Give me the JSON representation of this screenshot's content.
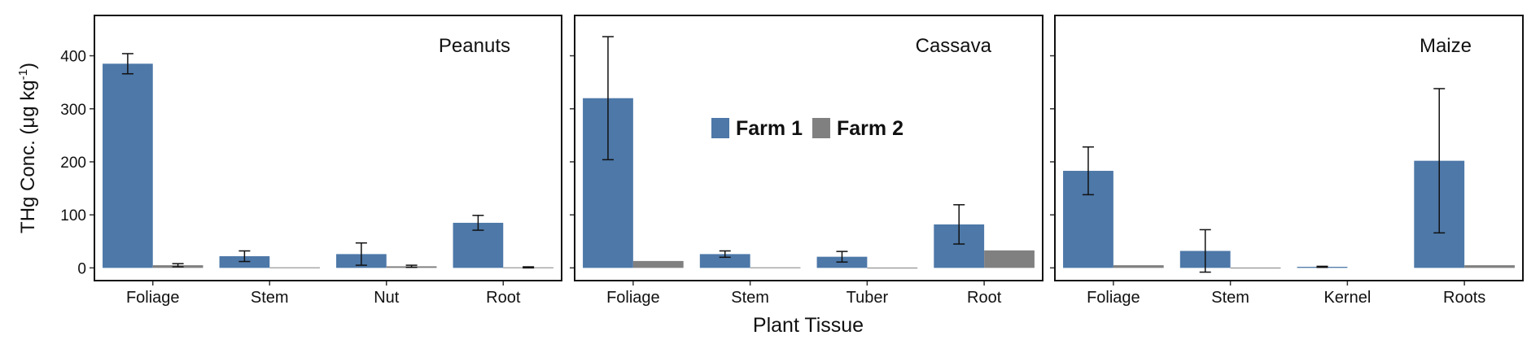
{
  "chart_data": {
    "type": "bar",
    "ylabel": [
      "THg Conc. (μg kg",
      "-1",
      ")"
    ],
    "xlabel": "Plant Tissue",
    "ylim": [
      -24,
      476
    ],
    "yticks": [
      0,
      100,
      200,
      300,
      400
    ],
    "legend": "center",
    "series": [
      {
        "name": "Farm 1",
        "color": "#4d78a8"
      },
      {
        "name": "Farm 2",
        "color": "#808080"
      }
    ],
    "panels": [
      {
        "title": "Peanuts",
        "categories": [
          "Foliage",
          "Stem",
          "Nut",
          "Root"
        ],
        "values": [
          [
            385,
            22,
            26,
            85
          ],
          [
            5,
            1,
            3,
            1
          ]
        ],
        "errors": [
          [
            19,
            10,
            21,
            14
          ],
          [
            3,
            null,
            2,
            1
          ]
        ]
      },
      {
        "title": "Cassava",
        "categories": [
          "Foliage",
          "Stem",
          "Tuber",
          "Root"
        ],
        "values": [
          [
            320,
            26,
            21,
            82
          ],
          [
            13,
            1,
            0.5,
            33
          ]
        ],
        "errors": [
          [
            116,
            6,
            10,
            37
          ],
          [
            null,
            null,
            null,
            null
          ]
        ]
      },
      {
        "title": "Maize",
        "categories": [
          "Foliage",
          "Stem",
          "Kernel",
          "Roots"
        ],
        "values": [
          [
            183,
            32,
            2,
            202
          ],
          [
            5,
            0.5,
            null,
            5
          ]
        ],
        "errors": [
          [
            45,
            40,
            1,
            136
          ],
          [
            null,
            null,
            null,
            null
          ]
        ]
      }
    ]
  }
}
